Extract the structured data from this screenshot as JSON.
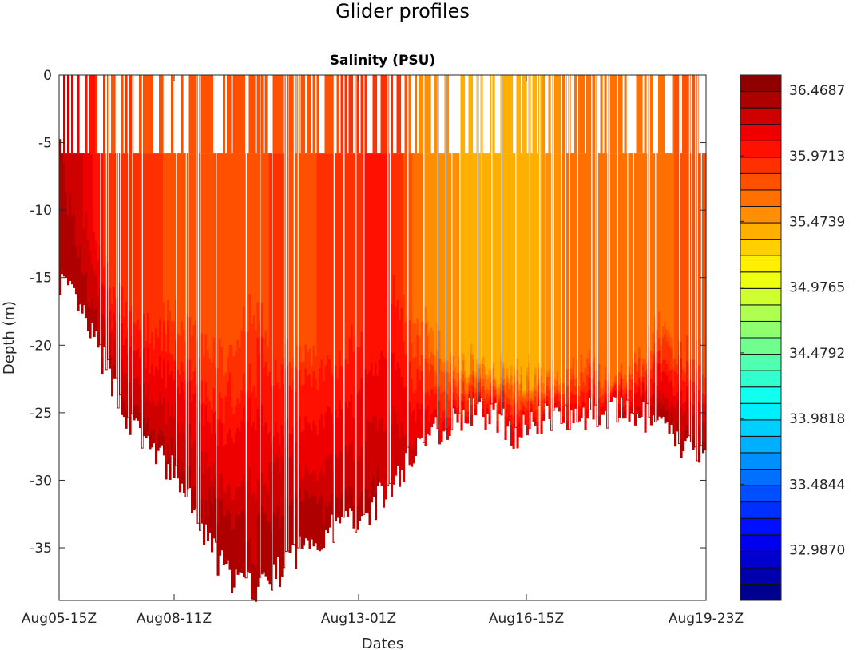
{
  "figure_title": "Glider profiles",
  "chart_data": {
    "type": "heatmap",
    "title": "Salinity  (PSU)",
    "xlabel": "Dates",
    "ylabel": "Depth  (m)",
    "ylim": [
      -38.9,
      0
    ],
    "yticks": [
      0,
      -5,
      -10,
      -15,
      -20,
      -25,
      -30,
      -35
    ],
    "xlim": [
      0,
      27
    ],
    "xticks": [
      {
        "value": 0,
        "label": "Aug05-15Z"
      },
      {
        "value": 4.8,
        "label": "Aug08-11Z"
      },
      {
        "value": 12.5,
        "label": "Aug13-01Z"
      },
      {
        "value": 19.5,
        "label": "Aug16-15Z"
      },
      {
        "value": 27,
        "label": "Aug19-23Z"
      }
    ],
    "profiles": {
      "bottom_depth": [
        -15,
        -18,
        -22,
        -26,
        -28,
        -30,
        -34,
        -37,
        -38,
        -37,
        -35,
        -34,
        -33,
        -32,
        -30,
        -27,
        -26,
        -25,
        -25,
        -26.5,
        -25.5,
        -25,
        -25,
        -25,
        -25,
        -26,
        -27.5,
        -28
      ],
      "surface_salinity": [
        36.3,
        36.1,
        35.8,
        35.85,
        35.8,
        35.8,
        35.8,
        35.8,
        35.8,
        35.8,
        35.8,
        35.8,
        35.85,
        35.95,
        35.9,
        35.55,
        35.5,
        35.45,
        35.45,
        35.45,
        35.45,
        35.6,
        35.6,
        35.6,
        35.6,
        35.65,
        35.75,
        35.8
      ],
      "mixed_layer_salinity": [
        36.35,
        36.2,
        35.9,
        35.85,
        35.85,
        35.8,
        35.8,
        35.8,
        35.8,
        35.85,
        35.8,
        35.85,
        35.9,
        36.0,
        35.95,
        35.6,
        35.5,
        35.45,
        35.45,
        35.45,
        35.45,
        35.6,
        35.6,
        35.6,
        35.6,
        35.65,
        35.75,
        35.8
      ],
      "mixed_layer_depth": [
        -6,
        -10,
        -14,
        -17,
        -18,
        -18,
        -20,
        -21,
        -17,
        -20,
        -21,
        -20,
        -20,
        -19,
        -16,
        -18,
        -20,
        -21,
        -22,
        -22,
        -22,
        -22,
        -21,
        -22,
        -21,
        -19,
        -20,
        -21
      ],
      "bottom_salinity": [
        36.45,
        36.4,
        36.35,
        36.35,
        36.35,
        36.4,
        36.4,
        36.45,
        36.4,
        36.45,
        36.45,
        36.4,
        36.35,
        36.35,
        36.3,
        36.2,
        36.1,
        36.1,
        36.1,
        36.2,
        36.1,
        36.1,
        36.1,
        36.2,
        36.25,
        36.35,
        36.4,
        36.4
      ]
    },
    "colorbar": {
      "colormap": "jet",
      "levels": 32,
      "clim": [
        32.604,
        36.583
      ],
      "ticks": [
        36.4687,
        35.9713,
        35.4739,
        34.9765,
        34.4792,
        33.9818,
        33.4844,
        32.987
      ],
      "tick_labels": [
        "36.4687",
        "35.9713",
        "35.4739",
        "34.9765",
        "34.4792",
        "33.9818",
        "33.4844",
        "32.9870"
      ]
    }
  }
}
